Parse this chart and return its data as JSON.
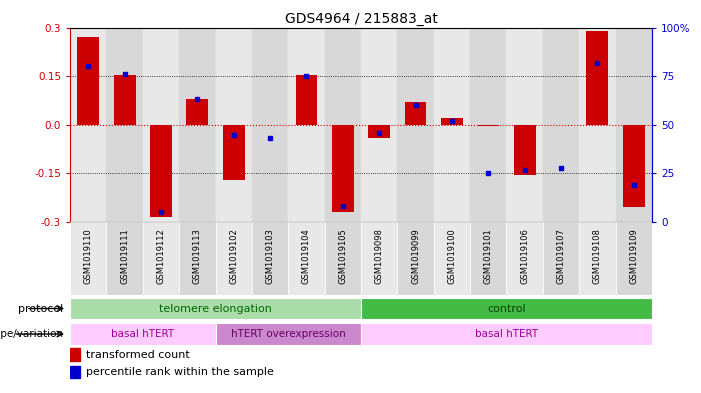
{
  "title": "GDS4964 / 215883_at",
  "samples": [
    "GSM1019110",
    "GSM1019111",
    "GSM1019112",
    "GSM1019113",
    "GSM1019102",
    "GSM1019103",
    "GSM1019104",
    "GSM1019105",
    "GSM1019098",
    "GSM1019099",
    "GSM1019100",
    "GSM1019101",
    "GSM1019106",
    "GSM1019107",
    "GSM1019108",
    "GSM1019109"
  ],
  "transformed_count": [
    0.27,
    0.155,
    -0.285,
    0.08,
    -0.17,
    0.0,
    0.155,
    -0.27,
    -0.04,
    0.07,
    0.02,
    -0.005,
    -0.155,
    0.0,
    0.29,
    -0.255
  ],
  "percentile_rank": [
    80,
    76,
    5,
    63,
    45,
    43,
    75,
    8,
    46,
    60,
    52,
    25,
    27,
    28,
    82,
    19
  ],
  "bar_color": "#cc0000",
  "dot_color": "#0000cc",
  "ylim_left": [
    -0.3,
    0.3
  ],
  "ylim_right": [
    0,
    100
  ],
  "yticks_left": [
    -0.3,
    -0.15,
    0.0,
    0.15,
    0.3
  ],
  "yticks_right": [
    0,
    25,
    50,
    75,
    100
  ],
  "ytick_labels_right": [
    "0",
    "25",
    "50",
    "75",
    "100%"
  ],
  "protocol_row": [
    {
      "text": "telomere elongation",
      "start": 0,
      "end": 8,
      "facecolor": "#aaddaa",
      "textcolor": "#006600"
    },
    {
      "text": "control",
      "start": 8,
      "end": 16,
      "facecolor": "#44bb44",
      "textcolor": "#004400"
    }
  ],
  "genotype_row": [
    {
      "text": "basal hTERT",
      "start": 0,
      "end": 4,
      "facecolor": "#ffccff",
      "textcolor": "#990099"
    },
    {
      "text": "hTERT overexpression",
      "start": 4,
      "end": 8,
      "facecolor": "#cc88cc",
      "textcolor": "#660066"
    },
    {
      "text": "basal hTERT",
      "start": 8,
      "end": 16,
      "facecolor": "#ffccff",
      "textcolor": "#990099"
    }
  ],
  "col_colors": [
    "#e8e8e8",
    "#d8d8d8"
  ],
  "bar_color_label": "transformed count",
  "dot_color_label": "percentile rank within the sample"
}
